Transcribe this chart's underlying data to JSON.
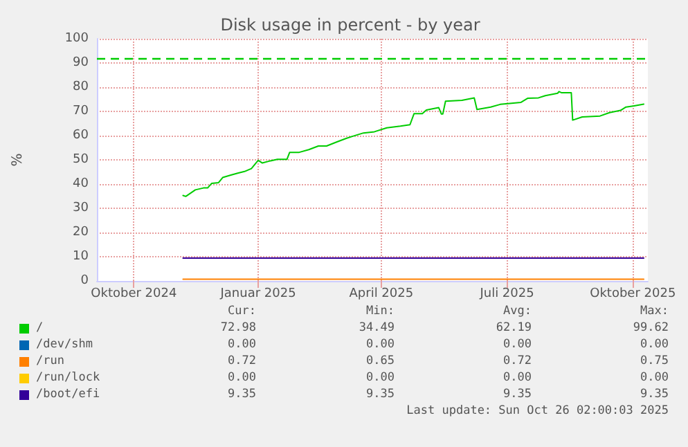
{
  "chart_data": {
    "type": "line",
    "title": "Disk usage in percent - by year",
    "ylabel": "%",
    "xlim": [
      "2024-09-21",
      "2025-10-29"
    ],
    "xticks": [
      {
        "value": "2024-10-18",
        "label": "Oktober 2024"
      },
      {
        "value": "2025-01-17",
        "label": "Januar 2025"
      },
      {
        "value": "2025-04-17",
        "label": "April 2025"
      },
      {
        "value": "2025-07-18",
        "label": "Juli 2025"
      },
      {
        "value": "2025-10-18",
        "label": "Oktober 2025"
      }
    ],
    "ylim": [
      0,
      100
    ],
    "yticks": [
      0,
      10,
      20,
      30,
      40,
      50,
      60,
      70,
      80,
      90,
      100
    ],
    "grid": true,
    "legend": "bottom",
    "marker": "none",
    "line_style": "solid",
    "ref_lines": [
      {
        "axis": "y",
        "value": 92,
        "color": "#00cc00",
        "line_style": "dashed"
      }
    ],
    "series": [
      {
        "name": "/",
        "color": "#00cc00",
        "x": [
          "2024-11-23",
          "2024-11-25",
          "2024-12-02",
          "2024-12-08",
          "2024-12-11",
          "2024-12-14",
          "2024-12-19",
          "2024-12-22",
          "2024-12-28",
          "2025-01-02",
          "2025-01-07",
          "2025-01-12",
          "2025-01-17",
          "2025-01-20",
          "2025-01-26",
          "2025-01-31",
          "2025-02-07",
          "2025-02-09",
          "2025-02-16",
          "2025-02-23",
          "2025-03-02",
          "2025-03-08",
          "2025-03-15",
          "2025-03-22",
          "2025-03-28",
          "2025-04-04",
          "2025-04-12",
          "2025-04-21",
          "2025-05-01",
          "2025-05-08",
          "2025-05-11",
          "2025-05-17",
          "2025-05-20",
          "2025-05-29",
          "2025-05-31",
          "2025-06-01",
          "2025-06-03",
          "2025-06-15",
          "2025-06-24",
          "2025-06-26",
          "2025-07-06",
          "2025-07-13",
          "2025-07-20",
          "2025-07-28",
          "2025-08-02",
          "2025-08-10",
          "2025-08-15",
          "2025-08-24",
          "2025-08-25",
          "2025-08-27",
          "2025-09-03",
          "2025-09-04",
          "2025-09-11",
          "2025-09-24",
          "2025-10-01",
          "2025-10-09",
          "2025-10-13",
          "2025-10-19",
          "2025-10-26"
        ],
        "values": [
          35.3,
          34.9,
          37.6,
          38.4,
          38.4,
          40.3,
          40.6,
          42.7,
          43.7,
          44.5,
          45.2,
          46.4,
          49.8,
          48.7,
          49.6,
          50.2,
          50.2,
          53.1,
          53.1,
          54.2,
          55.7,
          55.7,
          57.3,
          58.8,
          59.9,
          61.1,
          61.6,
          63.2,
          63.9,
          64.5,
          69.1,
          69.1,
          70.6,
          71.6,
          68.9,
          68.9,
          74.2,
          74.6,
          75.6,
          70.8,
          71.8,
          72.9,
          73.3,
          73.7,
          75.4,
          75.6,
          76.5,
          77.5,
          78.2,
          77.7,
          77.7,
          66.4,
          67.7,
          68.1,
          69.5,
          70.4,
          71.8,
          72.3,
          73.0
        ]
      },
      {
        "name": "/dev/shm",
        "color": "#0066b3"
      },
      {
        "name": "/run",
        "color": "#ff8000",
        "x": [
          "2024-11-23",
          "2025-10-26"
        ],
        "values": [
          0.7,
          0.7
        ]
      },
      {
        "name": "/run/lock",
        "color": "#ffcc00"
      },
      {
        "name": "/boot/efi",
        "color": "#330099",
        "x": [
          "2024-11-23",
          "2025-10-26"
        ],
        "values": [
          9.4,
          9.4
        ]
      }
    ],
    "annotations": [
      "Cur:",
      "Min:",
      "Avg:",
      "Max:",
      "72.98",
      "34.49",
      "62.19",
      "99.62",
      "0.00",
      "0.00",
      "0.00",
      "0.00",
      "0.72",
      "0.65",
      "0.72",
      "0.75",
      "0.00",
      "0.00",
      "0.00",
      "0.00",
      "9.35",
      "9.35",
      "9.35",
      "9.35",
      "Last update: Sun Oct 26 02:00:03 2025"
    ]
  }
}
